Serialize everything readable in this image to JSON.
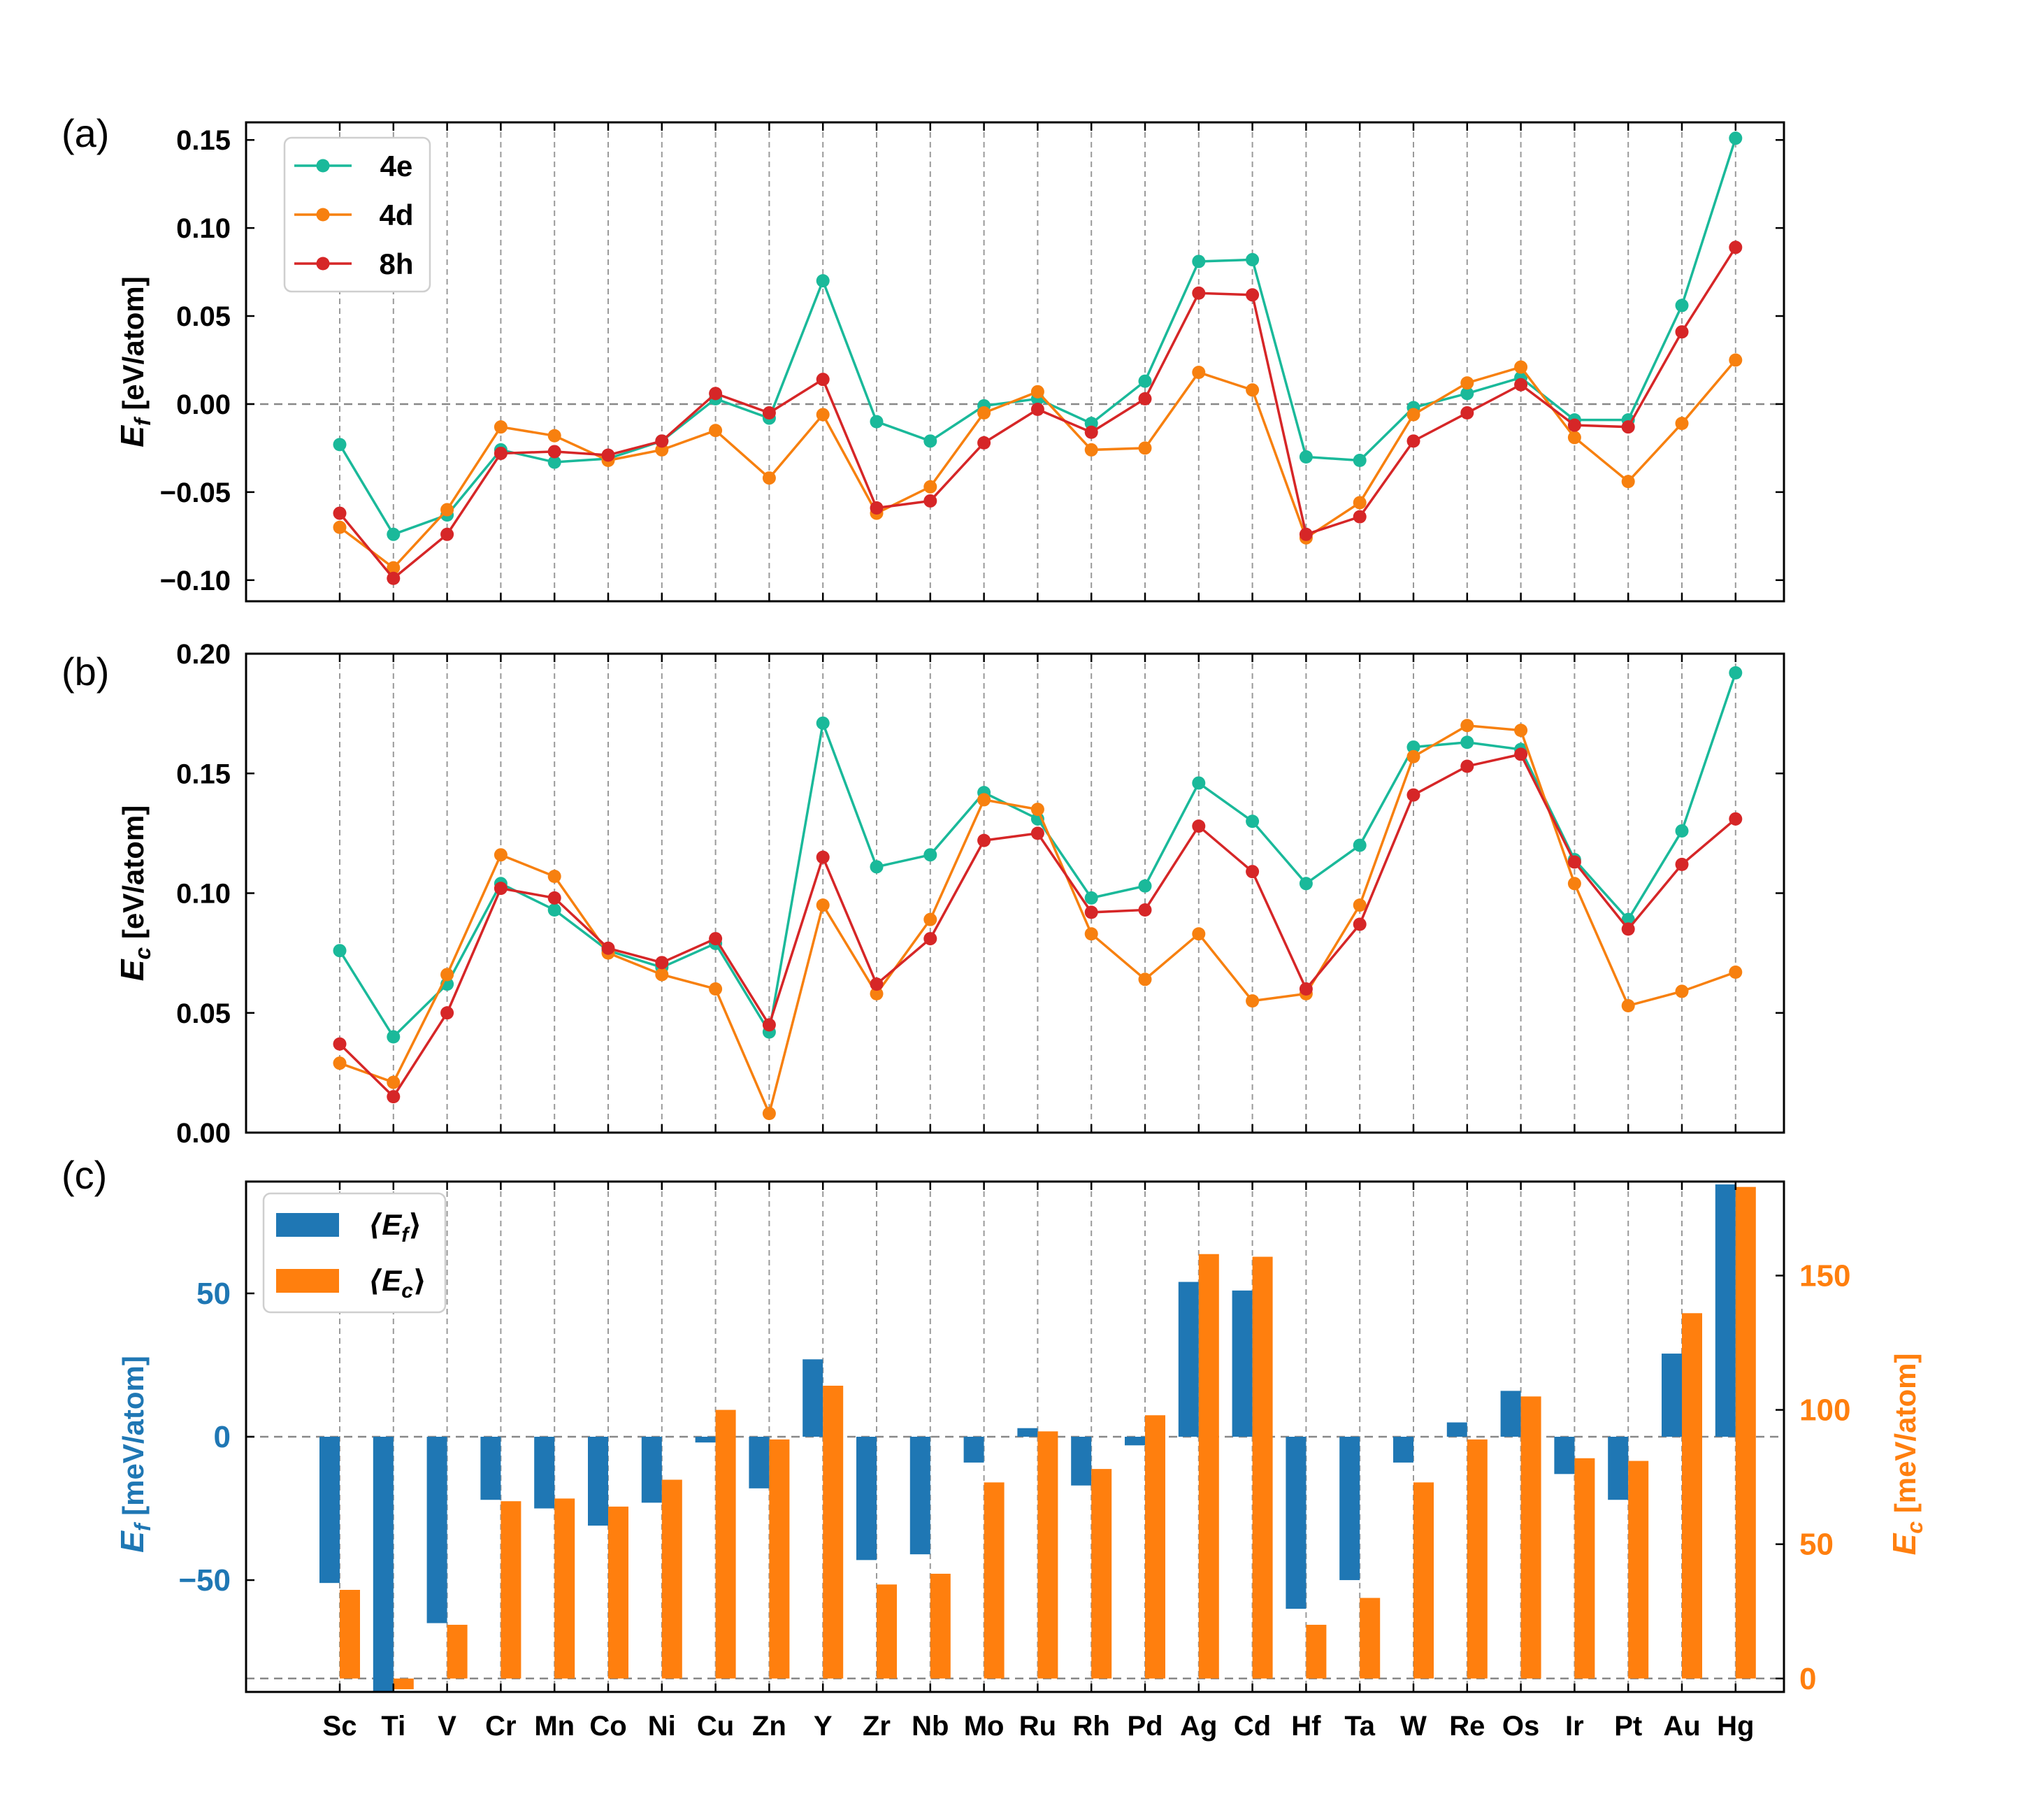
{
  "figure": {
    "panel_labels": [
      "(a)",
      "(b)",
      "(c)"
    ],
    "colors": {
      "e4": "#1ab99a",
      "d4": "#f7800f",
      "h8": "#d62627",
      "bar_ef": "#1f77b4",
      "bar_ec": "#ff7f0e"
    }
  },
  "chart_data": [
    {
      "id": "a",
      "type": "line",
      "ylabel_main": "E",
      "ylabel_sub": "f",
      "ylabel_unit": " [eV/atom]",
      "ylim": [
        -0.112,
        0.16
      ],
      "yticks": [
        0.15,
        0.1,
        0.05,
        0.0,
        -0.05,
        -0.1
      ],
      "ytick_labels": [
        "0.15",
        "0.10",
        "0.05",
        "0.00",
        "−0.05",
        "−0.10"
      ],
      "categories": [
        "Sc",
        "Ti",
        "V",
        "Cr",
        "Mn",
        "Co",
        "Ni",
        "Cu",
        "Zn",
        "Y",
        "Zr",
        "Nb",
        "Mo",
        "Ru",
        "Rh",
        "Pd",
        "Ag",
        "Cd",
        "Hf",
        "Ta",
        "W",
        "Re",
        "Os",
        "Ir",
        "Pt",
        "Au",
        "Hg"
      ],
      "reference_line": 0.0,
      "legend": [
        "4e",
        "4d",
        "8h"
      ],
      "series": [
        {
          "name": "4e",
          "color": "#1ab99a",
          "values": [
            -0.023,
            -0.074,
            -0.063,
            -0.026,
            -0.033,
            -0.031,
            -0.021,
            0.003,
            -0.008,
            0.07,
            -0.01,
            -0.021,
            -0.001,
            0.003,
            -0.011,
            0.013,
            0.081,
            0.082,
            -0.03,
            -0.032,
            -0.002,
            0.006,
            0.015,
            -0.009,
            -0.009,
            0.056,
            0.151
          ]
        },
        {
          "name": "4d",
          "color": "#f7800f",
          "values": [
            -0.07,
            -0.093,
            -0.06,
            -0.013,
            -0.018,
            -0.032,
            -0.026,
            -0.015,
            -0.042,
            -0.006,
            -0.062,
            -0.047,
            -0.005,
            0.007,
            -0.026,
            -0.025,
            0.018,
            0.008,
            -0.076,
            -0.056,
            -0.006,
            0.012,
            0.021,
            -0.019,
            -0.044,
            -0.011,
            0.025
          ]
        },
        {
          "name": "8h",
          "color": "#d62627",
          "values": [
            -0.062,
            -0.099,
            -0.074,
            -0.028,
            -0.027,
            -0.029,
            -0.021,
            0.006,
            -0.005,
            0.014,
            -0.059,
            -0.055,
            -0.022,
            -0.003,
            -0.016,
            0.003,
            0.063,
            0.062,
            -0.074,
            -0.064,
            -0.021,
            -0.005,
            0.011,
            -0.012,
            -0.013,
            0.041,
            0.089
          ]
        }
      ]
    },
    {
      "id": "b",
      "type": "line",
      "ylabel_main": "E",
      "ylabel_sub": "c",
      "ylabel_unit": " [eV/atom]",
      "ylim": [
        0.0,
        0.2
      ],
      "yticks": [
        0.2,
        0.15,
        0.1,
        0.05,
        0.0
      ],
      "ytick_labels": [
        "0.20",
        "0.15",
        "0.10",
        "0.05",
        "0.00"
      ],
      "categories": [
        "Sc",
        "Ti",
        "V",
        "Cr",
        "Mn",
        "Co",
        "Ni",
        "Cu",
        "Zn",
        "Y",
        "Zr",
        "Nb",
        "Mo",
        "Ru",
        "Rh",
        "Pd",
        "Ag",
        "Cd",
        "Hf",
        "Ta",
        "W",
        "Re",
        "Os",
        "Ir",
        "Pt",
        "Au",
        "Hg"
      ],
      "series": [
        {
          "name": "4e",
          "color": "#1ab99a",
          "values": [
            0.076,
            0.04,
            0.062,
            0.104,
            0.093,
            0.076,
            0.069,
            0.079,
            0.042,
            0.171,
            0.111,
            0.116,
            0.142,
            0.131,
            0.098,
            0.103,
            0.146,
            0.13,
            0.104,
            0.12,
            0.161,
            0.163,
            0.16,
            0.114,
            0.089,
            0.126,
            0.192
          ]
        },
        {
          "name": "4d",
          "color": "#f7800f",
          "values": [
            0.029,
            0.021,
            0.066,
            0.116,
            0.107,
            0.075,
            0.066,
            0.06,
            0.008,
            0.095,
            0.058,
            0.089,
            0.139,
            0.135,
            0.083,
            0.064,
            0.083,
            0.055,
            0.058,
            0.095,
            0.157,
            0.17,
            0.168,
            0.104,
            0.053,
            0.059,
            0.067
          ]
        },
        {
          "name": "8h",
          "color": "#d62627",
          "values": [
            0.037,
            0.015,
            0.05,
            0.102,
            0.098,
            0.077,
            0.071,
            0.081,
            0.045,
            0.115,
            0.062,
            0.081,
            0.122,
            0.125,
            0.092,
            0.093,
            0.128,
            0.109,
            0.06,
            0.087,
            0.141,
            0.153,
            0.158,
            0.113,
            0.085,
            0.112,
            0.131
          ]
        }
      ]
    },
    {
      "id": "c",
      "type": "bar",
      "ylabel_left_main": "E",
      "ylabel_left_sub": "f",
      "ylabel_left_unit": " [meV/atom]",
      "ylabel_right_main": "E",
      "ylabel_right_sub": "c",
      "ylabel_right_unit": " [meV/atom]",
      "ylim_left": [
        -89,
        89
      ],
      "yticks_left": [
        50,
        0,
        -50
      ],
      "ytick_labels_left": [
        "50",
        "0",
        "−50"
      ],
      "ylim_right": [
        -5,
        185
      ],
      "yticks_right": [
        150,
        100,
        50,
        0
      ],
      "ytick_labels_right": [
        "150",
        "100",
        "50",
        "0"
      ],
      "categories": [
        "Sc",
        "Ti",
        "V",
        "Cr",
        "Mn",
        "Co",
        "Ni",
        "Cu",
        "Zn",
        "Y",
        "Zr",
        "Nb",
        "Mo",
        "Ru",
        "Rh",
        "Pd",
        "Ag",
        "Cd",
        "Hf",
        "Ta",
        "W",
        "Re",
        "Os",
        "Ir",
        "Pt",
        "Au",
        "Hg"
      ],
      "legend": [
        {
          "main": "⟨E",
          "sub": "f",
          "close": "⟩"
        },
        {
          "main": "⟨E",
          "sub": "c",
          "close": "⟩"
        }
      ],
      "series": [
        {
          "name": "⟨Ef⟩",
          "axis": "left",
          "color": "#1f77b4",
          "values": [
            -51,
            -89,
            -65,
            -22,
            -25,
            -31,
            -23,
            -2,
            -18,
            27,
            -43,
            -41,
            -9,
            3,
            -17,
            -3,
            54,
            51,
            -60,
            -50,
            -9,
            5,
            16,
            -13,
            -22,
            29,
            88
          ]
        },
        {
          "name": "⟨Ec⟩",
          "axis": "right",
          "color": "#ff7f0e",
          "values": [
            33,
            -4,
            20,
            66,
            67,
            64,
            74,
            100,
            89,
            109,
            35,
            39,
            73,
            92,
            78,
            98,
            158,
            157,
            20,
            30,
            73,
            89,
            105,
            82,
            81,
            136,
            183
          ]
        }
      ]
    }
  ]
}
